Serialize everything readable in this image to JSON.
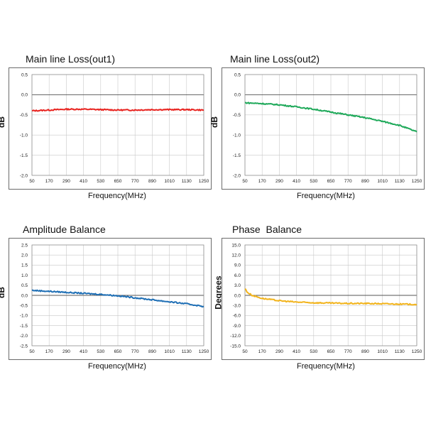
{
  "chart_data": [
    {
      "type": "line",
      "title": "Main line Loss(out1)",
      "xlabel": "Frequency(MHz)",
      "ylabel": "dB",
      "x_ticks": [
        "50",
        "170",
        "290",
        "410",
        "530",
        "650",
        "770",
        "890",
        "1010",
        "1130",
        "1250"
      ],
      "y_ticks": [
        "0.5",
        "0.0",
        "-0.5",
        "-1.0",
        "-1.5",
        "-2.0"
      ],
      "xlim": [
        50,
        1250
      ],
      "ylim": [
        -2.0,
        0.5
      ],
      "grid": true,
      "color": "#e8231f",
      "series": [
        {
          "x": [
            50,
            170,
            290,
            410,
            530,
            650,
            770,
            890,
            1010,
            1130,
            1250
          ],
          "values": [
            -0.4,
            -0.38,
            -0.36,
            -0.36,
            -0.37,
            -0.38,
            -0.38,
            -0.37,
            -0.37,
            -0.37,
            -0.38
          ]
        }
      ]
    },
    {
      "type": "line",
      "title": "Main line Loss(out2)",
      "xlabel": "Frequency(MHz)",
      "ylabel": "dB",
      "x_ticks": [
        "50",
        "170",
        "290",
        "410",
        "530",
        "650",
        "770",
        "890",
        "1010",
        "1130",
        "1250"
      ],
      "y_ticks": [
        "0.5",
        "0.0",
        "-0.5",
        "-1.0",
        "-1.5",
        "-2.0"
      ],
      "xlim": [
        50,
        1250
      ],
      "ylim": [
        -2.0,
        0.5
      ],
      "grid": true,
      "color": "#1fa95a",
      "series": [
        {
          "x": [
            50,
            170,
            290,
            410,
            530,
            650,
            770,
            890,
            1010,
            1130,
            1250
          ],
          "values": [
            -0.2,
            -0.22,
            -0.25,
            -0.3,
            -0.36,
            -0.43,
            -0.5,
            -0.57,
            -0.66,
            -0.76,
            -0.92
          ]
        }
      ]
    },
    {
      "type": "line",
      "title": "Amplitude Balance",
      "xlabel": "Frequency(MHz)",
      "ylabel": "dB",
      "x_ticks": [
        "50",
        "170",
        "290",
        "410",
        "530",
        "650",
        "770",
        "890",
        "1010",
        "1130",
        "1250"
      ],
      "y_ticks": [
        "2.5",
        "2.0",
        "1.5",
        "1.0",
        "0.5",
        "0.0",
        "-0.5",
        "-1.0",
        "-1.5",
        "-2.0",
        "-2.5"
      ],
      "xlim": [
        50,
        1250
      ],
      "ylim": [
        -2.5,
        2.5
      ],
      "grid": true,
      "color": "#1f6fb5",
      "series": [
        {
          "x": [
            50,
            170,
            290,
            410,
            530,
            650,
            770,
            890,
            1010,
            1130,
            1250
          ],
          "values": [
            0.25,
            0.2,
            0.15,
            0.1,
            0.05,
            -0.02,
            -0.12,
            -0.22,
            -0.32,
            -0.42,
            -0.55
          ]
        }
      ]
    },
    {
      "type": "line",
      "title": "Phase  Balance",
      "xlabel": "Frequency(MHz)",
      "ylabel": "Degrees",
      "x_ticks": [
        "50",
        "170",
        "290",
        "410",
        "530",
        "650",
        "770",
        "890",
        "1010",
        "1130",
        "1250"
      ],
      "y_ticks": [
        "15.0",
        "12.0",
        "9.0",
        "6.0",
        "3.0",
        "0.0",
        "-3.0",
        "-6.0",
        "-9.0",
        "-12.0",
        "-15.0"
      ],
      "xlim": [
        50,
        1250
      ],
      "ylim": [
        -15.0,
        15.0
      ],
      "grid": true,
      "color": "#f2b41d",
      "series": [
        {
          "x": [
            50,
            70,
            100,
            140,
            170,
            290,
            410,
            530,
            650,
            770,
            890,
            1010,
            1130,
            1250
          ],
          "values": [
            2.0,
            0.8,
            0.0,
            -0.5,
            -0.9,
            -1.6,
            -2.0,
            -2.2,
            -2.3,
            -2.4,
            -2.4,
            -2.5,
            -2.6,
            -2.7
          ]
        }
      ]
    }
  ]
}
